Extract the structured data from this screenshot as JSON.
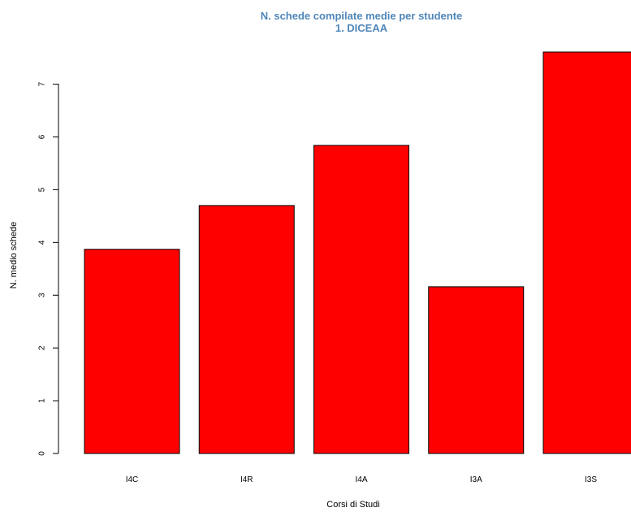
{
  "chart_data": {
    "type": "bar",
    "title": "N. schede compilate medie per studente",
    "subtitle": "1. DICEAA",
    "xlabel": "Corsi di Studi",
    "ylabel": "N. medio schede",
    "categories": [
      "I4C",
      "I4R",
      "I4A",
      "I3A",
      "I3S"
    ],
    "values": [
      3.87,
      4.7,
      5.84,
      3.16,
      7.61
    ],
    "ylim": [
      0,
      7.61
    ],
    "yticks": [
      "0",
      "1",
      "2",
      "3",
      "4",
      "5",
      "6",
      "7"
    ],
    "grid": false,
    "legend": "none",
    "bar_color": "#ff0000",
    "bar_border_color": "#000000",
    "title_color": "#4f86b9"
  }
}
